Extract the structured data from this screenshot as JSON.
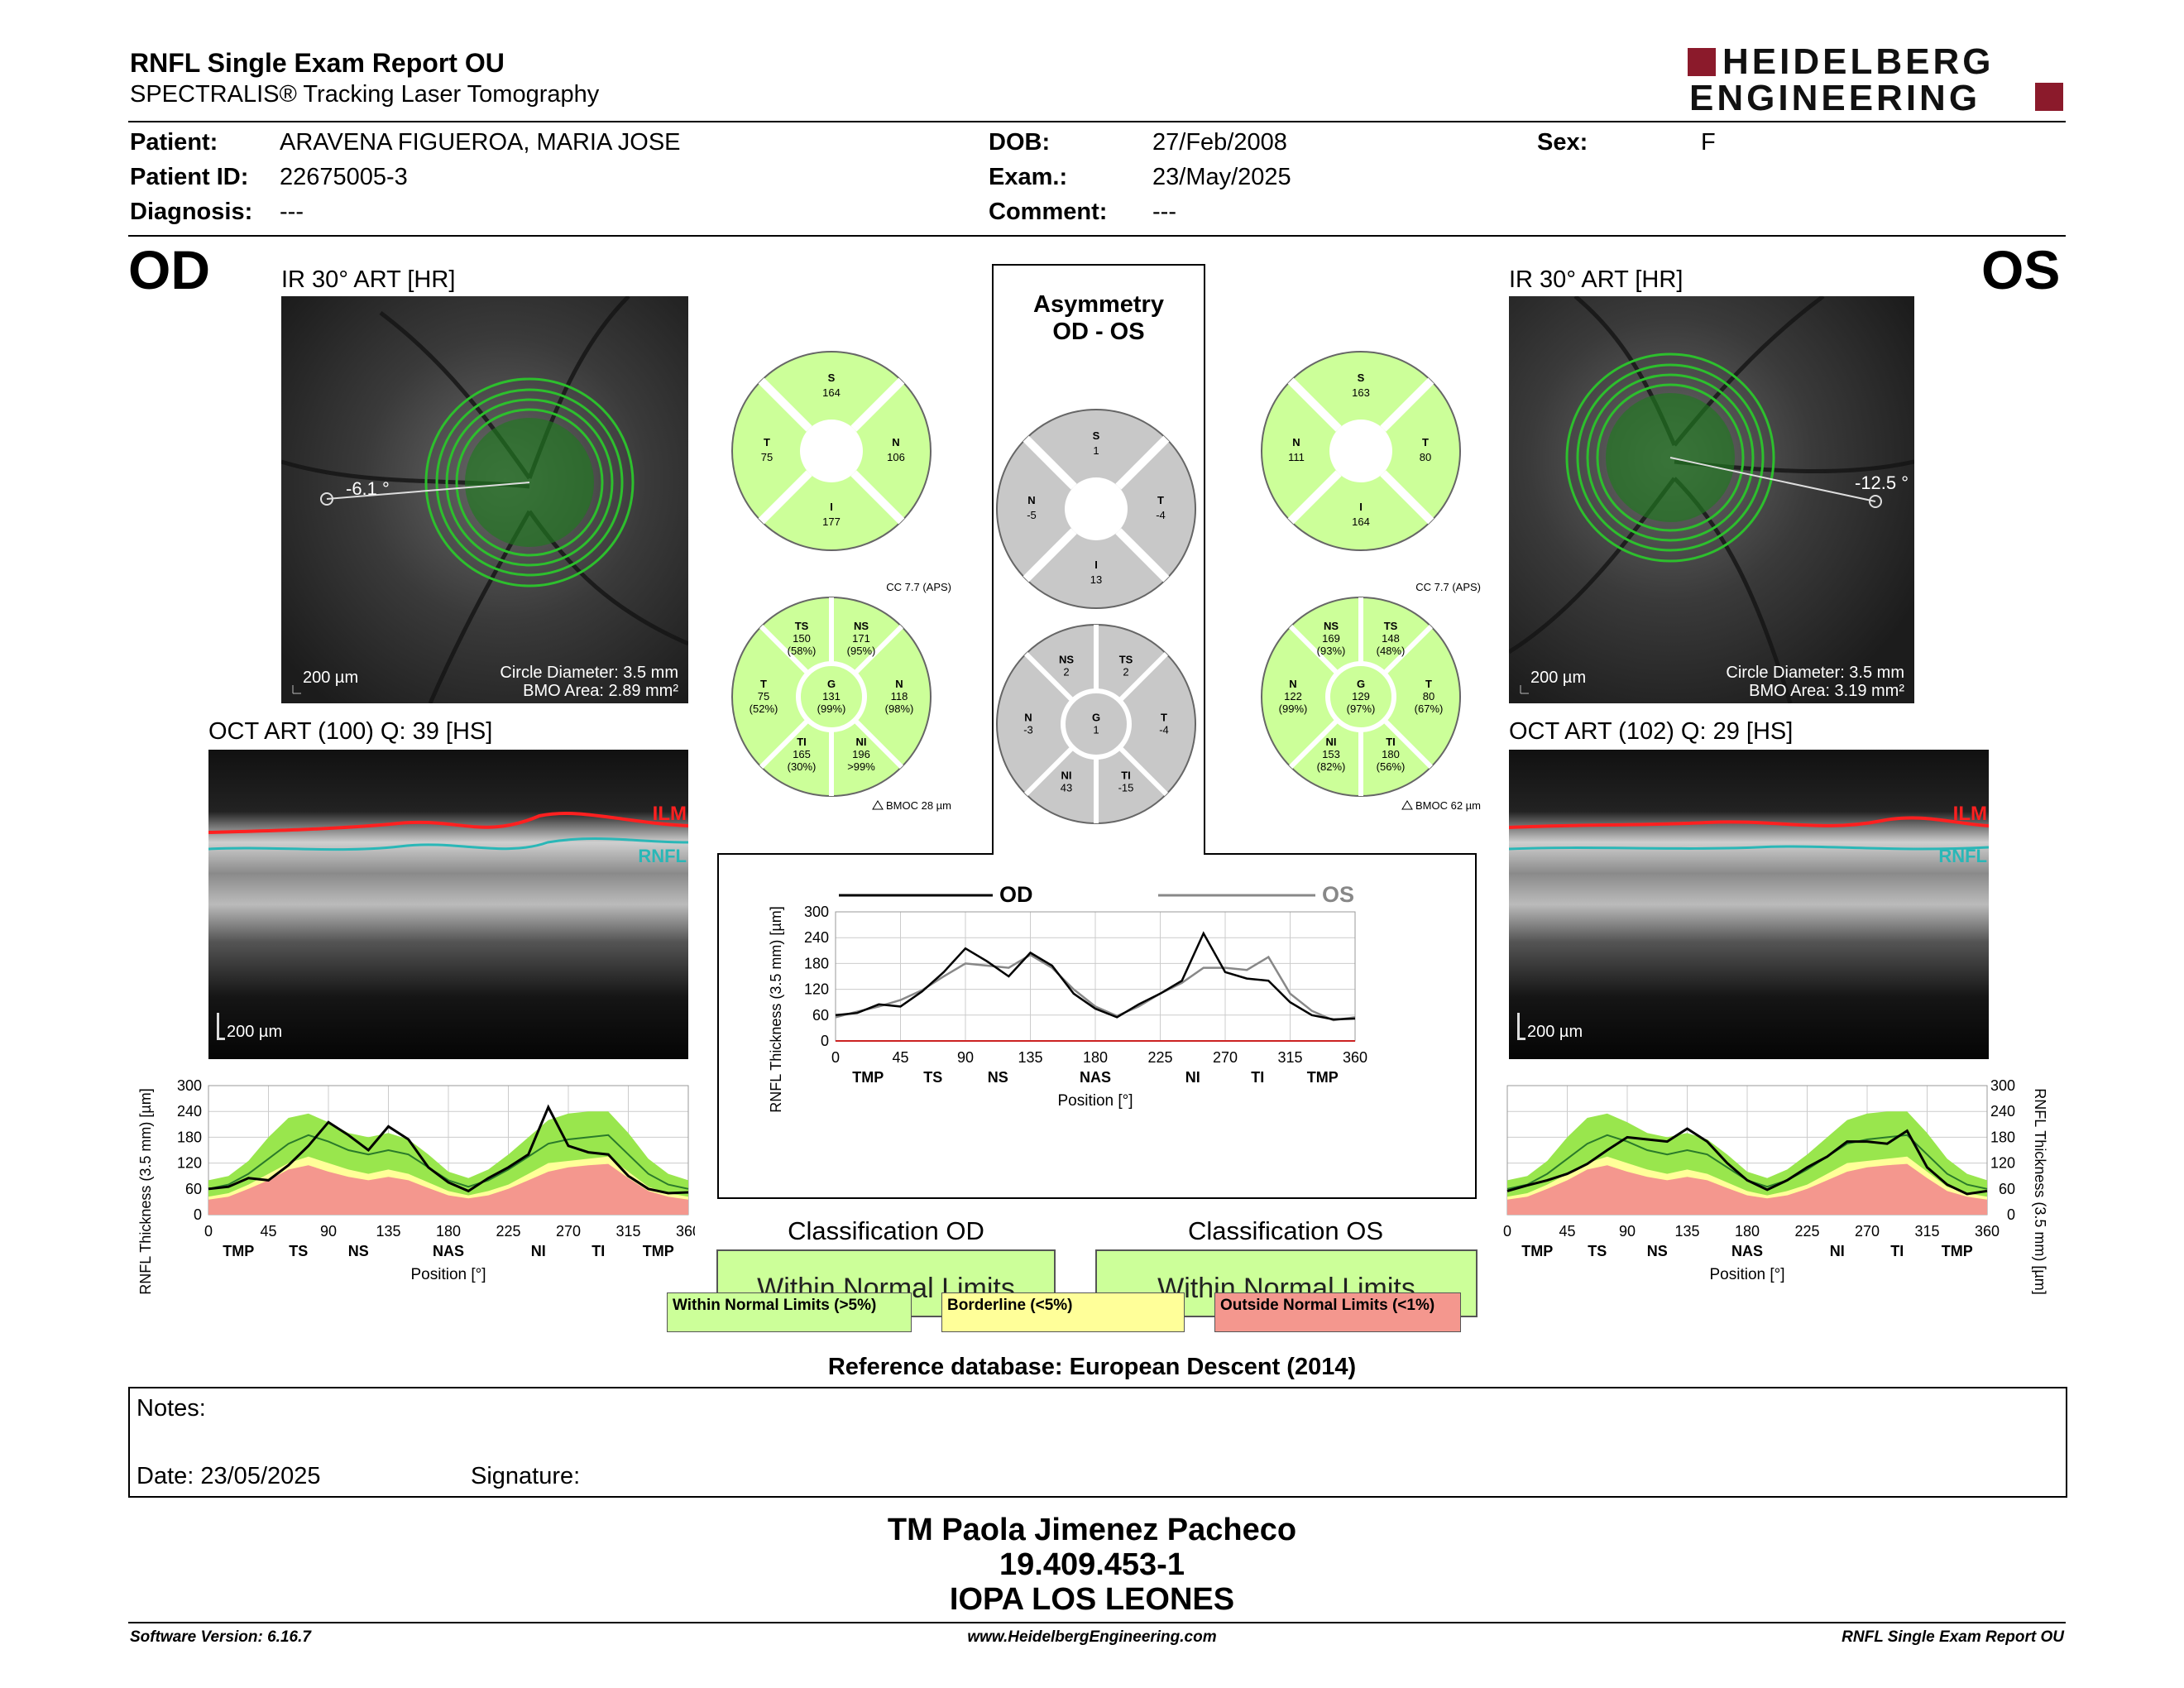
{
  "header": {
    "title": "RNFL Single Exam Report OU",
    "subtitle": "SPECTRALIS® Tracking Laser Tomography",
    "logo_line1": "HEIDELBERG",
    "logo_line2": "ENGINEERING"
  },
  "patient": {
    "patient_label": "Patient:",
    "patient_value": "ARAVENA FIGUEROA, MARIA JOSE",
    "id_label": "Patient ID:",
    "id_value": "22675005-3",
    "diagnosis_label": "Diagnosis:",
    "diagnosis_value": "---",
    "dob_label": "DOB:",
    "dob_value": "27/Feb/2008",
    "exam_label": "Exam.:",
    "exam_value": "23/May/2025",
    "comment_label": "Comment:",
    "comment_value": "---",
    "sex_label": "Sex:",
    "sex_value": "F"
  },
  "od": {
    "eye": "OD",
    "ir_title": "IR 30° ART [HR]",
    "angle": "-6.1 °",
    "scale": "200 µm",
    "circle_diameter": "Circle Diameter: 3.5 mm",
    "bmo_area": "BMO Area: 2.89 mm²",
    "oct_title": "OCT ART (100) Q: 39 [HS]",
    "oct_scale": "200 µm",
    "ilm": "ILM",
    "rnfl": "RNFL",
    "classification_title": "Classification OD",
    "classification_value": "Within Normal Limits"
  },
  "os": {
    "eye": "OS",
    "ir_title": "IR 30° ART [HR]",
    "angle": "-12.5 °",
    "scale": "200 µm",
    "circle_diameter": "Circle Diameter: 3.5 mm",
    "bmo_area": "BMO Area: 3.19 mm²",
    "oct_title": "OCT ART (102) Q: 29 [HS]",
    "oct_scale": "200 µm",
    "ilm": "ILM",
    "rnfl": "RNFL",
    "classification_title": "Classification OS",
    "classification_value": "Within Normal Limits"
  },
  "asymmetry": {
    "title1": "Asymmetry",
    "title2": "OD - OS"
  },
  "quadrants": {
    "od": {
      "S": "164",
      "T": "75",
      "N": "106",
      "I": "177"
    },
    "os": {
      "S": "163",
      "N": "111",
      "T": "80",
      "I": "164"
    },
    "asym": {
      "S": "1",
      "N": "-5",
      "T": "-4",
      "I": "13"
    }
  },
  "sectors": {
    "od": {
      "cc": "CC 7.7 (APS)",
      "bmoc": "BMOC 28 µm",
      "TS": [
        "TS",
        "150",
        "(58%)"
      ],
      "NS": [
        "NS",
        "171",
        "(95%)"
      ],
      "T": [
        "T",
        "75",
        "(52%)"
      ],
      "G": [
        "G",
        "131",
        "(99%)"
      ],
      "N": [
        "N",
        "118",
        "(98%)"
      ],
      "TI": [
        "TI",
        "165",
        "(30%)"
      ],
      "NI": [
        "NI",
        "196",
        ">99%"
      ]
    },
    "os": {
      "cc": "CC 7.7 (APS)",
      "bmoc": "BMOC 62 µm",
      "NS": [
        "NS",
        "169",
        "(93%)"
      ],
      "TS": [
        "TS",
        "148",
        "(48%)"
      ],
      "N": [
        "N",
        "122",
        "(99%)"
      ],
      "G": [
        "G",
        "129",
        "(97%)"
      ],
      "T": [
        "T",
        "80",
        "(67%)"
      ],
      "NI": [
        "NI",
        "153",
        "(82%)"
      ],
      "TI": [
        "TI",
        "180",
        "(56%)"
      ]
    },
    "asym": {
      "NS": [
        "NS",
        "2"
      ],
      "TS": [
        "TS",
        "2"
      ],
      "N": [
        "N",
        "-3"
      ],
      "G": [
        "G",
        "1"
      ],
      "T": [
        "T",
        "-4"
      ],
      "NI": [
        "NI",
        "43"
      ],
      "TI": [
        "TI",
        "-15"
      ]
    }
  },
  "legend": {
    "wnl": "Within Normal Limits (>5%)",
    "border": "Borderline (<5%)",
    "onl": "Outside Normal Limits (<1%)"
  },
  "chart_data": [
    {
      "type": "line",
      "title": "",
      "series_labels": [
        "OD",
        "OS"
      ],
      "ylabel": "RNFL Thickness (3.5 mm) [µm]",
      "xlabel": "Position [°]",
      "xlim": [
        0,
        360
      ],
      "ylim": [
        0,
        300
      ],
      "xticks": [
        "0",
        "45",
        "90",
        "135",
        "180",
        "225",
        "270",
        "315",
        "360"
      ],
      "yticks": [
        "0",
        "60",
        "120",
        "180",
        "240",
        "300"
      ],
      "sectors": [
        "TMP",
        "TS",
        "NS",
        "NAS",
        "NI",
        "TI",
        "TMP"
      ],
      "x": [
        0,
        15,
        30,
        45,
        60,
        75,
        90,
        105,
        120,
        135,
        150,
        165,
        180,
        195,
        210,
        225,
        240,
        255,
        270,
        285,
        300,
        315,
        330,
        345,
        360
      ],
      "series": [
        {
          "name": "OD",
          "values": [
            60,
            65,
            85,
            80,
            115,
            160,
            215,
            185,
            150,
            205,
            175,
            110,
            75,
            55,
            85,
            110,
            140,
            250,
            160,
            145,
            140,
            90,
            60,
            50,
            52
          ]
        },
        {
          "name": "OS",
          "values": [
            55,
            68,
            80,
            95,
            118,
            150,
            180,
            175,
            170,
            200,
            170,
            120,
            80,
            58,
            80,
            110,
            135,
            170,
            170,
            165,
            195,
            110,
            70,
            48,
            55
          ]
        }
      ],
      "colors": {
        "OD": "#000000",
        "OS": "#888888"
      }
    },
    {
      "type": "area",
      "eye": "OD",
      "ylabel": "RNFL Thickness (3.5 mm) [µm]",
      "xlabel": "Position [°]",
      "xlim": [
        0,
        360
      ],
      "ylim": [
        0,
        300
      ],
      "xticks": [
        "0",
        "45",
        "90",
        "135",
        "180",
        "225",
        "270",
        "315",
        "360"
      ],
      "yticks": [
        "0",
        "60",
        "120",
        "180",
        "240",
        "300"
      ],
      "sectors": [
        "TMP",
        "TS",
        "NS",
        "NAS",
        "NI",
        "TI",
        "TMP"
      ],
      "x": [
        0,
        15,
        30,
        45,
        60,
        75,
        90,
        105,
        120,
        135,
        150,
        165,
        180,
        195,
        210,
        225,
        240,
        255,
        270,
        285,
        300,
        315,
        330,
        345,
        360
      ],
      "values": [
        60,
        65,
        85,
        80,
        115,
        160,
        215,
        185,
        150,
        205,
        175,
        110,
        75,
        55,
        85,
        110,
        140,
        250,
        160,
        145,
        140,
        90,
        60,
        50,
        52
      ],
      "normal_mean": [
        60,
        70,
        95,
        130,
        165,
        185,
        170,
        150,
        140,
        150,
        140,
        110,
        80,
        65,
        80,
        105,
        135,
        165,
        175,
        180,
        185,
        140,
        95,
        70,
        60
      ],
      "band_upper": [
        80,
        90,
        125,
        180,
        225,
        235,
        215,
        190,
        180,
        190,
        175,
        140,
        100,
        85,
        105,
        140,
        180,
        220,
        235,
        240,
        240,
        190,
        130,
        95,
        80
      ],
      "band_5": [
        42,
        50,
        70,
        95,
        120,
        135,
        120,
        105,
        95,
        105,
        95,
        75,
        55,
        45,
        55,
        70,
        95,
        120,
        125,
        130,
        135,
        100,
        65,
        50,
        42
      ],
      "band_1": [
        35,
        42,
        60,
        80,
        105,
        115,
        100,
        88,
        80,
        88,
        80,
        62,
        45,
        38,
        45,
        60,
        80,
        100,
        110,
        115,
        118,
        85,
        55,
        42,
        35
      ]
    },
    {
      "type": "area",
      "eye": "OS",
      "ylabel": "RNFL Thickness (3.5 mm) [µm]",
      "xlabel": "Position [°]",
      "xlim": [
        0,
        360
      ],
      "ylim": [
        0,
        300
      ],
      "xticks": [
        "0",
        "45",
        "90",
        "135",
        "180",
        "225",
        "270",
        "315",
        "360"
      ],
      "yticks": [
        "0",
        "60",
        "120",
        "180",
        "240",
        "300"
      ],
      "sectors": [
        "TMP",
        "TS",
        "NS",
        "NAS",
        "NI",
        "TI",
        "TMP"
      ],
      "x": [
        0,
        15,
        30,
        45,
        60,
        75,
        90,
        105,
        120,
        135,
        150,
        165,
        180,
        195,
        210,
        225,
        240,
        255,
        270,
        285,
        300,
        315,
        330,
        345,
        360
      ],
      "values": [
        55,
        68,
        80,
        95,
        118,
        150,
        180,
        175,
        170,
        200,
        170,
        120,
        80,
        58,
        80,
        110,
        135,
        170,
        170,
        165,
        195,
        110,
        70,
        48,
        55
      ],
      "normal_mean": [
        60,
        70,
        95,
        130,
        165,
        185,
        170,
        150,
        140,
        150,
        140,
        110,
        80,
        65,
        80,
        105,
        135,
        165,
        175,
        180,
        185,
        140,
        95,
        70,
        60
      ],
      "band_upper": [
        80,
        90,
        125,
        180,
        225,
        235,
        215,
        190,
        180,
        190,
        175,
        140,
        100,
        85,
        105,
        140,
        180,
        220,
        235,
        240,
        240,
        190,
        130,
        95,
        80
      ],
      "band_5": [
        42,
        50,
        70,
        95,
        120,
        135,
        120,
        105,
        95,
        105,
        95,
        75,
        55,
        45,
        55,
        70,
        95,
        120,
        125,
        130,
        135,
        100,
        65,
        50,
        42
      ],
      "band_1": [
        35,
        42,
        60,
        80,
        105,
        115,
        100,
        88,
        80,
        88,
        80,
        62,
        45,
        38,
        45,
        60,
        80,
        100,
        110,
        115,
        118,
        85,
        55,
        42,
        35
      ]
    }
  ],
  "reference_db": "Reference database: European Descent (2014)",
  "notes": {
    "label": "Notes:",
    "date": "Date: 23/05/2025",
    "signature": "Signature:"
  },
  "signer": {
    "name": "TM Paola Jimenez Pacheco",
    "rut": "19.409.453-1",
    "clinic": "IOPA LOS LEONES"
  },
  "footer": {
    "version": "Software Version: 6.16.7",
    "url": "www.HeidelbergEngineering.com",
    "report": "RNFL Single Exam Report OU"
  },
  "colors": {
    "wnl": "#ccff99",
    "wnl_dark": "#99e64d",
    "border": "#ffff99",
    "onl": "#f4978e",
    "grey": "#c8c8c8",
    "green_circle": "#33cc33"
  }
}
